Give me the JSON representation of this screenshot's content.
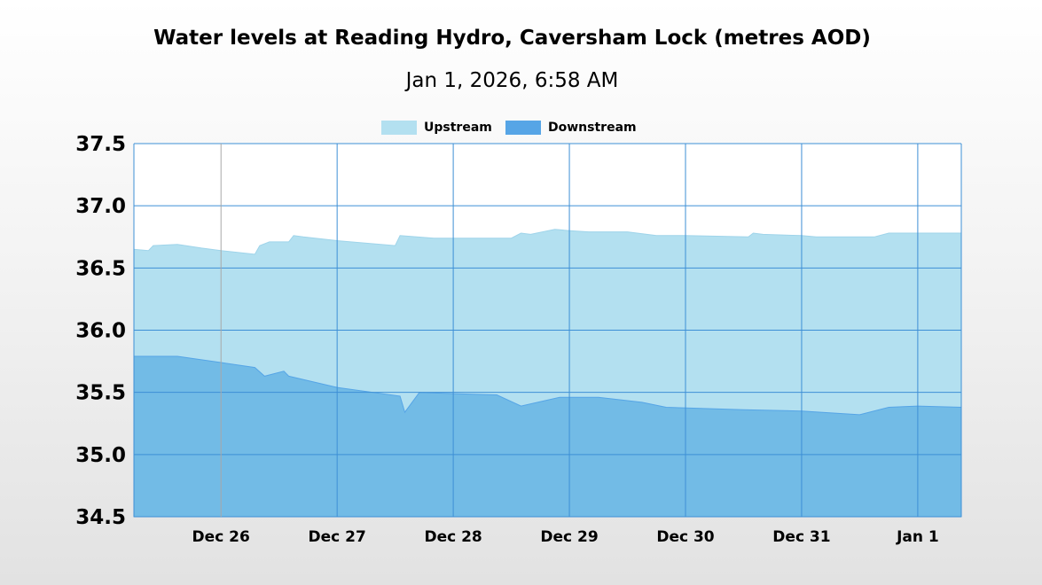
{
  "chart_data": {
    "type": "area",
    "title": "Water levels at Reading Hydro, Caversham Lock (metres AOD)",
    "subtitle": "Jan 1, 2026, 6:58 AM",
    "xlabel": "",
    "ylabel": "",
    "x_type": "datetime",
    "x_range": [
      "2025-12-25T06:00",
      "2026-01-01T09:00"
    ],
    "ylim": [
      34.5,
      37.5
    ],
    "y_ticks": [
      "37.5",
      "37.0",
      "36.5",
      "36.0",
      "35.5",
      "35.0",
      "34.5"
    ],
    "x_ticks": [
      {
        "label": "Dec 26",
        "date": "2025-12-26T00:00"
      },
      {
        "label": "Dec 27",
        "date": "2025-12-27T00:00"
      },
      {
        "label": "Dec 28",
        "date": "2025-12-28T00:00"
      },
      {
        "label": "Dec 29",
        "date": "2025-12-29T00:00"
      },
      {
        "label": "Dec 30",
        "date": "2025-12-30T00:00"
      },
      {
        "label": "Dec 31",
        "date": "2025-12-31T00:00"
      },
      {
        "label": "Jan 1",
        "date": "2026-01-01T00:00"
      }
    ],
    "grid": true,
    "legend_position": "top-center",
    "series": [
      {
        "name": "Upstream",
        "color": "#b3e0f0",
        "points": [
          [
            "2025-12-25T06:00",
            36.65
          ],
          [
            "2025-12-25T09:00",
            36.64
          ],
          [
            "2025-12-25T10:00",
            36.68
          ],
          [
            "2025-12-25T15:00",
            36.69
          ],
          [
            "2025-12-25T20:00",
            36.66
          ],
          [
            "2025-12-26T00:00",
            36.64
          ],
          [
            "2025-12-26T07:00",
            36.61
          ],
          [
            "2025-12-26T08:00",
            36.68
          ],
          [
            "2025-12-26T10:00",
            36.71
          ],
          [
            "2025-12-26T14:00",
            36.71
          ],
          [
            "2025-12-26T15:00",
            36.76
          ],
          [
            "2025-12-26T17:00",
            36.75
          ],
          [
            "2025-12-27T00:00",
            36.72
          ],
          [
            "2025-12-27T12:00",
            36.68
          ],
          [
            "2025-12-27T13:00",
            36.76
          ],
          [
            "2025-12-27T20:00",
            36.74
          ],
          [
            "2025-12-28T12:00",
            36.74
          ],
          [
            "2025-12-28T14:00",
            36.78
          ],
          [
            "2025-12-28T16:00",
            36.77
          ],
          [
            "2025-12-28T21:00",
            36.81
          ],
          [
            "2025-12-29T00:00",
            36.8
          ],
          [
            "2025-12-29T04:00",
            36.79
          ],
          [
            "2025-12-29T12:00",
            36.79
          ],
          [
            "2025-12-29T14:00",
            36.78
          ],
          [
            "2025-12-29T18:00",
            36.76
          ],
          [
            "2025-12-30T00:00",
            36.76
          ],
          [
            "2025-12-30T13:00",
            36.75
          ],
          [
            "2025-12-30T14:00",
            36.78
          ],
          [
            "2025-12-30T16:00",
            36.77
          ],
          [
            "2025-12-31T00:00",
            36.76
          ],
          [
            "2025-12-31T03:00",
            36.75
          ],
          [
            "2025-12-31T15:00",
            36.75
          ],
          [
            "2025-12-31T18:00",
            36.78
          ],
          [
            "2026-01-01T00:00",
            36.78
          ],
          [
            "2026-01-01T09:00",
            36.78
          ]
        ]
      },
      {
        "name": "Downstream",
        "color": "#56a5e6",
        "points": [
          [
            "2025-12-25T06:00",
            35.79
          ],
          [
            "2025-12-25T15:00",
            35.79
          ],
          [
            "2025-12-26T00:00",
            35.74
          ],
          [
            "2025-12-26T07:00",
            35.7
          ],
          [
            "2025-12-26T09:00",
            35.63
          ],
          [
            "2025-12-26T13:00",
            35.67
          ],
          [
            "2025-12-26T14:00",
            35.63
          ],
          [
            "2025-12-27T00:00",
            35.54
          ],
          [
            "2025-12-27T13:00",
            35.47
          ],
          [
            "2025-12-27T14:00",
            35.34
          ],
          [
            "2025-12-27T17:00",
            35.5
          ],
          [
            "2025-12-28T00:00",
            35.49
          ],
          [
            "2025-12-28T09:00",
            35.48
          ],
          [
            "2025-12-28T14:00",
            35.39
          ],
          [
            "2025-12-28T22:00",
            35.46
          ],
          [
            "2025-12-29T06:00",
            35.46
          ],
          [
            "2025-12-29T15:00",
            35.42
          ],
          [
            "2025-12-29T20:00",
            35.38
          ],
          [
            "2025-12-30T12:00",
            35.36
          ],
          [
            "2025-12-31T00:00",
            35.35
          ],
          [
            "2025-12-31T12:00",
            35.32
          ],
          [
            "2025-12-31T18:00",
            35.38
          ],
          [
            "2026-01-01T00:00",
            35.39
          ],
          [
            "2026-01-01T09:00",
            35.38
          ]
        ]
      }
    ]
  }
}
